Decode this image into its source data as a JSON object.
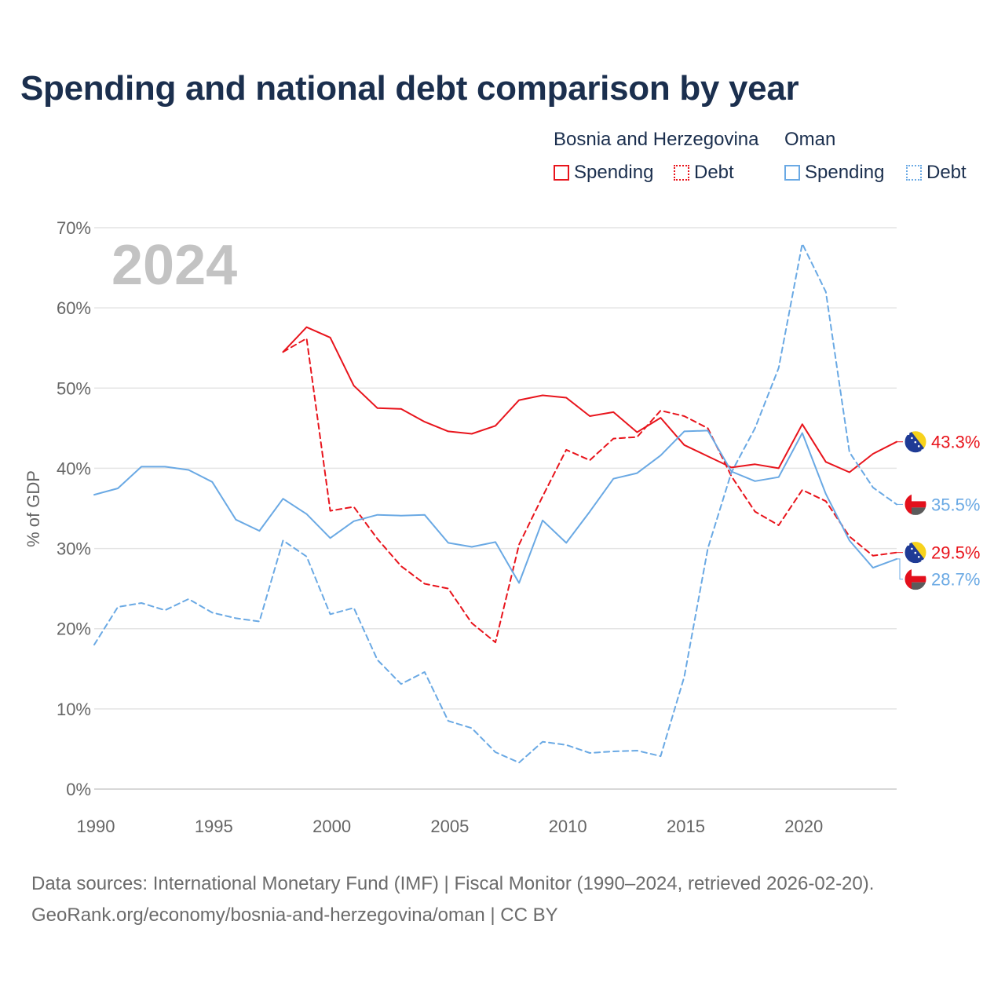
{
  "title": "Spending and national debt comparison by year",
  "legend": {
    "groups": [
      {
        "name": "Bosnia and Herzegovina",
        "color": "#e8141c",
        "items": [
          {
            "label": "Spending",
            "style": "solid"
          },
          {
            "label": "Debt",
            "style": "dotted"
          }
        ]
      },
      {
        "name": "Oman",
        "color": "#6aa9e4",
        "items": [
          {
            "label": "Spending",
            "style": "solid"
          },
          {
            "label": "Debt",
            "style": "dotted"
          }
        ]
      }
    ]
  },
  "year_watermark": "2024",
  "footer": {
    "line1": "Data sources: International Monetary Fund (IMF) | Fiscal Monitor (1990–2024, retrieved 2026-02-20).",
    "line2": "GeoRank.org/economy/bosnia-and-herzegovina/oman | CC BY"
  },
  "chart_data": {
    "type": "line",
    "title": "Spending and national debt comparison by year",
    "xlabel": "",
    "ylabel": "% of GDP",
    "xlim": [
      1990,
      2024
    ],
    "ylim": [
      0,
      70
    ],
    "x_ticks": [
      1990,
      1995,
      2000,
      2005,
      2010,
      2015,
      2020
    ],
    "y_ticks": [
      0,
      10,
      20,
      30,
      40,
      50,
      60,
      70
    ],
    "y_tick_labels": [
      "0%",
      "10%",
      "20%",
      "30%",
      "40%",
      "50%",
      "60%",
      "70%"
    ],
    "grid": true,
    "series": [
      {
        "name": "Bosnia and Herzegovina Spending",
        "country": "Bosnia and Herzegovina",
        "color": "#e8141c",
        "dash": "solid",
        "end_label": "43.3%",
        "flag": "bih",
        "x": [
          1998,
          1999,
          2000,
          2001,
          2002,
          2003,
          2004,
          2005,
          2006,
          2007,
          2008,
          2009,
          2010,
          2011,
          2012,
          2013,
          2014,
          2015,
          2016,
          2017,
          2018,
          2019,
          2020,
          2021,
          2022,
          2023,
          2024
        ],
        "values": [
          54.5,
          57.6,
          56.3,
          50.3,
          47.5,
          47.4,
          45.8,
          44.6,
          44.3,
          45.3,
          48.5,
          49.1,
          48.8,
          46.5,
          47.0,
          44.5,
          46.3,
          42.9,
          41.5,
          40.1,
          40.5,
          40.0,
          45.5,
          40.8,
          39.5,
          41.8,
          43.3
        ]
      },
      {
        "name": "Bosnia and Herzegovina Debt",
        "country": "Bosnia and Herzegovina",
        "color": "#e8141c",
        "dash": "dashed",
        "end_label": "29.5%",
        "flag": "bih",
        "x": [
          1998,
          1999,
          2000,
          2001,
          2002,
          2003,
          2004,
          2005,
          2006,
          2007,
          2008,
          2009,
          2010,
          2011,
          2012,
          2013,
          2014,
          2015,
          2016,
          2017,
          2018,
          2019,
          2020,
          2021,
          2022,
          2023,
          2024
        ],
        "values": [
          54.5,
          56.2,
          34.7,
          35.2,
          31.2,
          27.8,
          25.6,
          25.0,
          20.7,
          18.3,
          30.5,
          36.5,
          42.3,
          41.0,
          43.7,
          43.9,
          47.2,
          46.5,
          45.0,
          39.0,
          34.6,
          32.9,
          37.3,
          35.9,
          31.5,
          29.1,
          29.5
        ]
      },
      {
        "name": "Oman Spending",
        "country": "Oman",
        "color": "#6aa9e4",
        "dash": "solid",
        "end_label": "28.7%",
        "flag": "oman",
        "x": [
          1990,
          1991,
          1992,
          1993,
          1994,
          1995,
          1996,
          1997,
          1998,
          1999,
          2000,
          2001,
          2002,
          2003,
          2004,
          2005,
          2006,
          2007,
          2008,
          2009,
          2010,
          2011,
          2012,
          2013,
          2014,
          2015,
          2016,
          2017,
          2018,
          2019,
          2020,
          2021,
          2022,
          2023,
          2024
        ],
        "values": [
          36.7,
          37.5,
          40.2,
          40.2,
          39.8,
          38.3,
          33.6,
          32.2,
          36.2,
          34.3,
          31.3,
          33.4,
          34.2,
          34.1,
          34.2,
          30.7,
          30.2,
          30.8,
          25.7,
          33.5,
          30.7,
          34.6,
          38.7,
          39.4,
          41.6,
          44.6,
          44.7,
          39.6,
          38.4,
          38.9,
          44.4,
          36.8,
          31.0,
          27.6,
          28.7
        ]
      },
      {
        "name": "Oman Debt",
        "country": "Oman",
        "color": "#6aa9e4",
        "dash": "dashed",
        "end_label": "35.5%",
        "flag": "oman",
        "x": [
          1990,
          1991,
          1992,
          1993,
          1994,
          1995,
          1996,
          1997,
          1998,
          1999,
          2000,
          2001,
          2002,
          2003,
          2004,
          2005,
          2006,
          2007,
          2008,
          2009,
          2010,
          2011,
          2012,
          2013,
          2014,
          2015,
          2016,
          2017,
          2018,
          2019,
          2020,
          2021,
          2022,
          2023,
          2024
        ],
        "values": [
          18.0,
          22.7,
          23.2,
          22.3,
          23.7,
          22.0,
          21.3,
          20.9,
          31.0,
          29.0,
          21.8,
          22.6,
          16.1,
          13.1,
          14.6,
          8.5,
          7.6,
          4.6,
          3.3,
          5.9,
          5.5,
          4.5,
          4.7,
          4.8,
          4.1,
          14.0,
          30.0,
          39.5,
          45.0,
          52.5,
          68.0,
          62.0,
          42.0,
          37.6,
          35.5
        ]
      }
    ]
  }
}
